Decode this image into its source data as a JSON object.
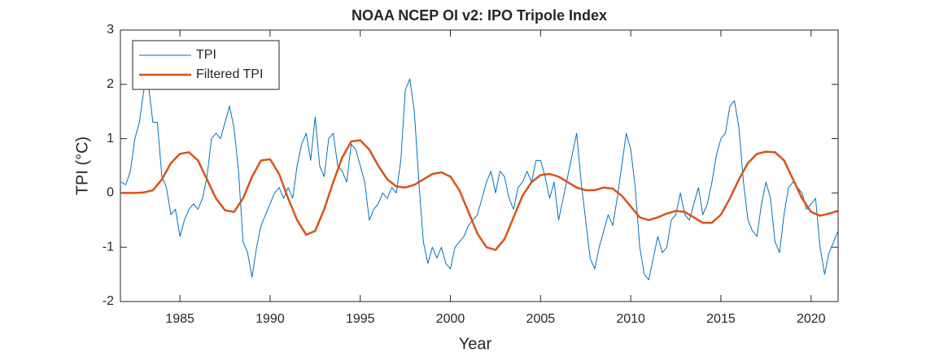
{
  "chart_data": {
    "type": "line",
    "title": "NOAA NCEP OI v2: IPO Tripole Index",
    "x_label": "Year",
    "y_label": "TPI (°C)",
    "xlim": [
      1981.7,
      2021.5
    ],
    "ylim": [
      -2,
      3
    ],
    "xticks": [
      1985,
      1990,
      1995,
      2000,
      2005,
      2010,
      2015,
      2020
    ],
    "yticks": [
      -2,
      -1,
      0,
      1,
      2,
      3
    ],
    "grid": false,
    "legend": "upper left",
    "series": [
      {
        "name": "TPI",
        "color": "#0072bd",
        "line_width": 1,
        "x": [
          1981.75,
          1982,
          1982.25,
          1982.5,
          1982.75,
          1983,
          1983.25,
          1983.5,
          1983.75,
          1984,
          1984.25,
          1984.5,
          1984.75,
          1985,
          1985.25,
          1985.5,
          1985.75,
          1986,
          1986.25,
          1986.5,
          1986.75,
          1987,
          1987.25,
          1987.5,
          1987.75,
          1988,
          1988.25,
          1988.5,
          1988.75,
          1989,
          1989.25,
          1989.5,
          1989.75,
          1990,
          1990.25,
          1990.5,
          1990.75,
          1991,
          1991.25,
          1991.5,
          1991.75,
          1992,
          1992.25,
          1992.5,
          1992.75,
          1993,
          1993.25,
          1993.5,
          1993.75,
          1994,
          1994.25,
          1994.5,
          1994.75,
          1995,
          1995.25,
          1995.5,
          1995.75,
          1996,
          1996.25,
          1996.5,
          1996.75,
          1997,
          1997.25,
          1997.5,
          1997.75,
          1998,
          1998.25,
          1998.5,
          1998.75,
          1999,
          1999.25,
          1999.5,
          1999.75,
          2000,
          2000.25,
          2000.5,
          2000.75,
          2001,
          2001.25,
          2001.5,
          2001.75,
          2002,
          2002.25,
          2002.5,
          2002.75,
          2003,
          2003.25,
          2003.5,
          2003.75,
          2004,
          2004.25,
          2004.5,
          2004.75,
          2005,
          2005.25,
          2005.5,
          2005.75,
          2006,
          2006.25,
          2006.5,
          2006.75,
          2007,
          2007.25,
          2007.5,
          2007.75,
          2008,
          2008.25,
          2008.5,
          2008.75,
          2009,
          2009.25,
          2009.5,
          2009.75,
          2010,
          2010.25,
          2010.5,
          2010.75,
          2011,
          2011.25,
          2011.5,
          2011.75,
          2012,
          2012.25,
          2012.5,
          2012.75,
          2013,
          2013.25,
          2013.5,
          2013.75,
          2014,
          2014.25,
          2014.5,
          2014.75,
          2015,
          2015.25,
          2015.5,
          2015.75,
          2016,
          2016.25,
          2016.5,
          2016.75,
          2017,
          2017.25,
          2017.5,
          2017.75,
          2018,
          2018.25,
          2018.5,
          2018.75,
          2019,
          2019.25,
          2019.5,
          2019.75,
          2020,
          2020.25,
          2020.5,
          2020.75,
          2021,
          2021.25,
          2021.5
        ],
        "values": [
          0.2,
          0.15,
          0.4,
          1.0,
          1.3,
          1.9,
          2.0,
          1.3,
          1.3,
          0.3,
          0.1,
          -0.4,
          -0.3,
          -0.8,
          -0.5,
          -0.3,
          -0.2,
          -0.3,
          -0.1,
          0.3,
          1.0,
          1.1,
          1.0,
          1.3,
          1.6,
          1.2,
          0.4,
          -0.9,
          -1.1,
          -1.55,
          -1.0,
          -0.6,
          -0.4,
          -0.2,
          0.0,
          0.1,
          -0.1,
          0.1,
          -0.1,
          0.5,
          0.9,
          1.1,
          0.6,
          1.4,
          0.5,
          0.3,
          1.0,
          1.1,
          0.5,
          0.4,
          0.2,
          0.9,
          0.8,
          0.5,
          0.2,
          -0.5,
          -0.3,
          -0.2,
          0.0,
          -0.1,
          0.1,
          0.0,
          0.6,
          1.9,
          2.1,
          1.5,
          0.2,
          -0.9,
          -1.3,
          -1.0,
          -1.2,
          -1.0,
          -1.3,
          -1.4,
          -1.0,
          -0.9,
          -0.8,
          -0.6,
          -0.5,
          -0.4,
          -0.1,
          0.2,
          0.4,
          0.0,
          0.4,
          0.3,
          -0.1,
          -0.3,
          0.1,
          0.2,
          0.4,
          0.2,
          0.6,
          0.6,
          0.3,
          -0.1,
          0.2,
          -0.5,
          -0.1,
          0.3,
          0.7,
          1.1,
          0.2,
          -0.5,
          -1.2,
          -1.4,
          -1.0,
          -0.7,
          -0.4,
          -0.6,
          -0.1,
          0.5,
          1.1,
          0.8,
          0.1,
          -1.0,
          -1.5,
          -1.6,
          -1.2,
          -0.8,
          -1.1,
          -1.0,
          -0.5,
          -0.4,
          0.0,
          -0.4,
          -0.5,
          -0.2,
          0.1,
          -0.4,
          -0.2,
          0.2,
          0.7,
          1.0,
          1.1,
          1.6,
          1.7,
          1.2,
          0.2,
          -0.5,
          -0.7,
          -0.8,
          -0.2,
          0.2,
          -0.1,
          -0.9,
          -1.1,
          -0.4,
          0.1,
          0.2,
          0.1,
          0.0,
          -0.3,
          -0.2,
          -0.1,
          -1.0,
          -1.5,
          -1.1,
          -0.9,
          -0.7
        ]
      },
      {
        "name": "Filtered TPI",
        "color": "#d95319",
        "line_width": 2.5,
        "x": [
          1981.75,
          1982,
          1982.5,
          1983,
          1983.5,
          1984,
          1984.5,
          1985,
          1985.5,
          1986,
          1986.5,
          1987,
          1987.5,
          1988,
          1988.5,
          1989,
          1989.5,
          1990,
          1990.5,
          1991,
          1991.5,
          1992,
          1992.5,
          1993,
          1993.5,
          1994,
          1994.5,
          1995,
          1995.5,
          1996,
          1996.5,
          1997,
          1997.5,
          1998,
          1998.5,
          1999,
          1999.5,
          2000,
          2000.5,
          2001,
          2001.5,
          2002,
          2002.5,
          2003,
          2003.5,
          2004,
          2004.5,
          2005,
          2005.5,
          2006,
          2006.5,
          2007,
          2007.5,
          2008,
          2008.5,
          2009,
          2009.5,
          2010,
          2010.5,
          2011,
          2011.5,
          2012,
          2012.5,
          2013,
          2013.5,
          2014,
          2014.5,
          2015,
          2015.5,
          2016,
          2016.5,
          2017,
          2017.5,
          2018,
          2018.5,
          2019,
          2019.5,
          2020,
          2020.5,
          2021,
          2021.5
        ],
        "values": [
          0,
          0,
          0,
          0.01,
          0.05,
          0.25,
          0.55,
          0.72,
          0.75,
          0.6,
          0.25,
          -0.1,
          -0.32,
          -0.35,
          -0.1,
          0.3,
          0.6,
          0.62,
          0.35,
          -0.1,
          -0.5,
          -0.77,
          -0.7,
          -0.3,
          0.2,
          0.65,
          0.95,
          0.97,
          0.8,
          0.5,
          0.25,
          0.12,
          0.1,
          0.15,
          0.25,
          0.35,
          0.38,
          0.3,
          0.05,
          -0.35,
          -0.75,
          -1.0,
          -1.05,
          -0.85,
          -0.45,
          -0.05,
          0.2,
          0.33,
          0.35,
          0.3,
          0.2,
          0.1,
          0.05,
          0.05,
          0.1,
          0.08,
          -0.05,
          -0.25,
          -0.45,
          -0.5,
          -0.45,
          -0.38,
          -0.33,
          -0.35,
          -0.45,
          -0.55,
          -0.55,
          -0.4,
          -0.1,
          0.25,
          0.55,
          0.72,
          0.76,
          0.75,
          0.6,
          0.25,
          -0.1,
          -0.35,
          -0.42,
          -0.38,
          -0.33
        ]
      }
    ]
  }
}
